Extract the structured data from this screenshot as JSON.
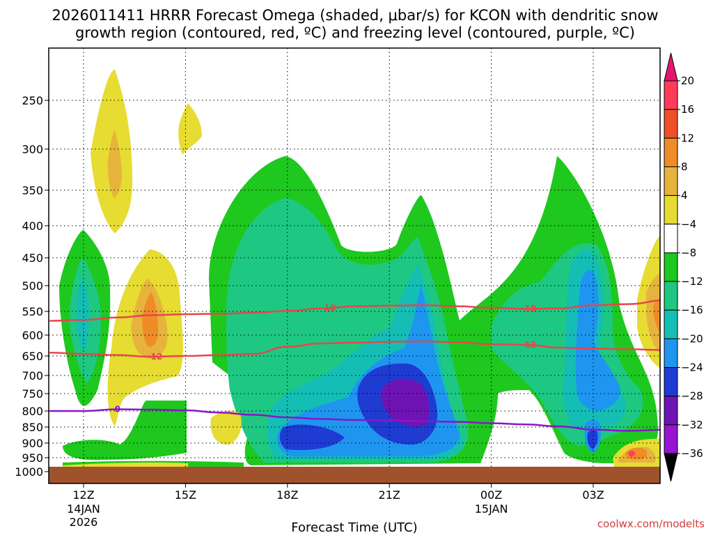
{
  "chart_data": {
    "type": "contour",
    "title_line1": "2026011411 HRRR Forecast Omega (shaded, μbar/s) for KCON with dendritic snow",
    "title_line2": "growth region (contoured, red, ºC) and freezing level (contoured, purple, ºC)",
    "xlabel": "Forecast Time (UTC)",
    "ylabel": "",
    "y_ticks": [
      250,
      300,
      350,
      400,
      450,
      500,
      550,
      600,
      650,
      700,
      750,
      800,
      850,
      900,
      950,
      1000
    ],
    "y_tick_labels": [
      "250",
      "300",
      "350",
      "400",
      "450",
      "500",
      "550",
      "600",
      "650",
      "700",
      "750",
      "800",
      "850",
      "900",
      "950",
      "1000"
    ],
    "x_ticks": [
      {
        "hour": 0,
        "label": "12Z",
        "sub1": "14JAN",
        "sub2": "2026"
      },
      {
        "hour": 3,
        "label": "15Z",
        "sub1": "",
        "sub2": ""
      },
      {
        "hour": 6,
        "label": "18Z",
        "sub1": "",
        "sub2": ""
      },
      {
        "hour": 9,
        "label": "21Z",
        "sub1": "",
        "sub2": ""
      },
      {
        "hour": 12,
        "label": "00Z",
        "sub1": "15JAN",
        "sub2": ""
      },
      {
        "hour": 15,
        "label": "03Z",
        "sub1": "",
        "sub2": ""
      }
    ],
    "x_range_hours": [
      -1,
      17.2
    ],
    "colorbar": {
      "labels": [
        "20",
        "16",
        "12",
        "8",
        "4",
        "−4",
        "−8",
        "−12",
        "−16",
        "−20",
        "−24",
        "−28",
        "−32",
        "−36"
      ],
      "colors": [
        "#ff3c5a",
        "#f05028",
        "#f08c28",
        "#e6b43c",
        "#e6dc32",
        "#ffffff",
        "#1ec81e",
        "#1ec882",
        "#14beb4",
        "#1e96f0",
        "#1e3cd2",
        "#6e14b4",
        "#9614d2",
        "#a0a0a0"
      ],
      "top_arrow_color": "#e6146e",
      "bottom_arrow_color": "#000000"
    },
    "contours": {
      "dgz_color": "#e6464b",
      "freezing_color": "#8c14c8",
      "dgz_labels": [
        "-18",
        "-12"
      ],
      "freezing_label": "0",
      "freezing_level_hpa": [
        [
          -1,
          800
        ],
        [
          0,
          800
        ],
        [
          1,
          795
        ],
        [
          2,
          796
        ],
        [
          3,
          798
        ],
        [
          4,
          805
        ],
        [
          5,
          812
        ],
        [
          6,
          820
        ],
        [
          7,
          825
        ],
        [
          8,
          828
        ],
        [
          9,
          830
        ],
        [
          10,
          832
        ],
        [
          11,
          834
        ],
        [
          12,
          838
        ],
        [
          13,
          842
        ],
        [
          14,
          848
        ],
        [
          15,
          858
        ],
        [
          16,
          862
        ],
        [
          17.2,
          858
        ]
      ],
      "minus12_hpa": [
        [
          -1,
          642
        ],
        [
          0,
          645
        ],
        [
          1,
          648
        ],
        [
          2,
          652
        ],
        [
          3,
          650
        ],
        [
          4,
          648
        ],
        [
          5,
          645
        ],
        [
          6,
          628
        ],
        [
          7,
          620
        ],
        [
          8,
          618
        ],
        [
          9,
          616
        ],
        [
          10,
          615
        ],
        [
          11,
          617
        ],
        [
          12,
          622
        ],
        [
          13,
          623
        ],
        [
          14,
          630
        ],
        [
          15,
          632
        ],
        [
          16,
          634
        ],
        [
          17.2,
          636
        ]
      ],
      "minus18_hpa": [
        [
          -1,
          570
        ],
        [
          0,
          568
        ],
        [
          1,
          563
        ],
        [
          2,
          558
        ],
        [
          3,
          556
        ],
        [
          4,
          555
        ],
        [
          5,
          553
        ],
        [
          6,
          549
        ],
        [
          7,
          544
        ],
        [
          8,
          540
        ],
        [
          9,
          539
        ],
        [
          10,
          538
        ],
        [
          11,
          540
        ],
        [
          12,
          543
        ],
        [
          13,
          545
        ],
        [
          14,
          544
        ],
        [
          15,
          538
        ],
        [
          16,
          536
        ],
        [
          17.2,
          528
        ]
      ]
    },
    "omega_regions": [
      {
        "name": "A",
        "values": [
          4,
          8
        ],
        "center_hour": 1.9,
        "center_hpa": 320,
        "note": "upper-level weak rising-positive lobe"
      },
      {
        "name": "B",
        "values": [
          4,
          8,
          12
        ],
        "center_hour": 2.2,
        "center_hpa": 570,
        "note": "positive omega core near 14Z"
      },
      {
        "name": "C",
        "values": [
          -8,
          -12,
          -16
        ],
        "center_hour": 0,
        "center_hpa": 560,
        "note": "negative column near 12Z"
      },
      {
        "name": "D",
        "values": [
          -8,
          -12,
          -16,
          -20,
          -24,
          -28
        ],
        "center_hour": 9.8,
        "center_hpa": 790,
        "note": "main ascent core near 22Z"
      },
      {
        "name": "E",
        "values": [
          -8,
          -12,
          -16,
          -20
        ],
        "center_hour": 15,
        "center_hpa": 880,
        "note": "ascent near 03Z"
      },
      {
        "name": "F",
        "values": [
          4,
          8,
          12,
          16
        ],
        "center_hour": 16.2,
        "center_hpa": 935,
        "note": "low-level sinking near 04Z"
      }
    ],
    "grid": true,
    "ground_color": "#a0522d"
  },
  "credit": "coolwx.com/modelts"
}
